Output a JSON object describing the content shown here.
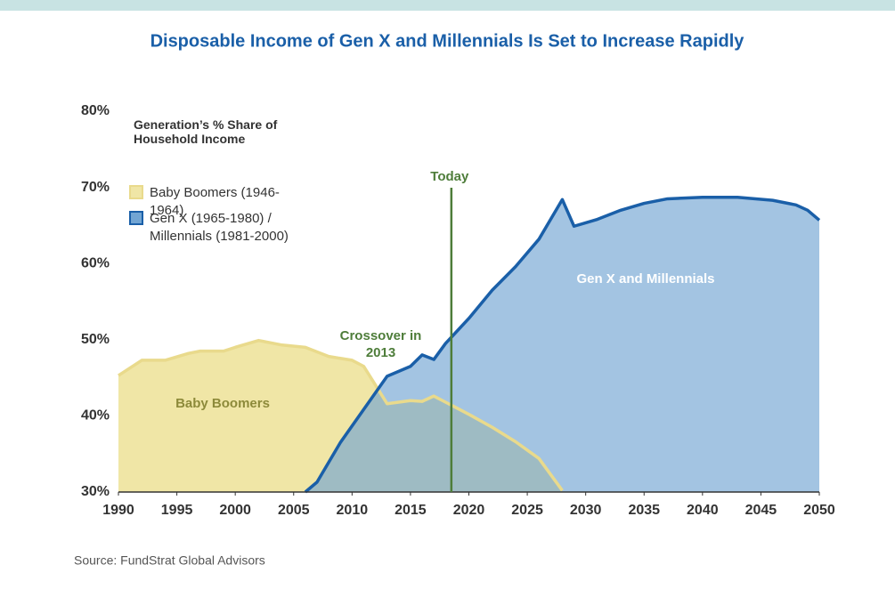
{
  "chart_data": {
    "type": "area",
    "title": "Disposable Income of Gen X and Millennials Is Set to Increase Rapidly",
    "legend_title": "Generation’s % Share of Household Income",
    "source": "Source: FundStrat Global Advisors",
    "xlim": [
      1990,
      2050
    ],
    "xticks": [
      1990,
      1995,
      2000,
      2005,
      2010,
      2015,
      2020,
      2025,
      2030,
      2035,
      2040,
      2045,
      2050
    ],
    "ylim": [
      30,
      80
    ],
    "yticks": [
      {
        "value": 30,
        "label": "30%"
      },
      {
        "value": 40,
        "label": "40%"
      },
      {
        "value": 50,
        "label": "50%"
      },
      {
        "value": 60,
        "label": "60%"
      },
      {
        "value": 70,
        "label": "70%"
      },
      {
        "value": 80,
        "label": "80%"
      }
    ],
    "today": {
      "label": "Today",
      "x": 2018.5,
      "color": "#4e7d3a"
    },
    "annotations": [
      "Baby Boomers",
      "Crossover in 2013",
      "Gen X and Millennials"
    ],
    "series": [
      {
        "name": "Baby Boomers (1946-1964)",
        "color": "#e9da8c",
        "fill": "#f0e6a6",
        "x": [
          1990,
          1992,
          1994,
          1996,
          1997,
          1999,
          2000,
          2002,
          2004,
          2006,
          2008,
          2010,
          2011,
          2013,
          2015,
          2016,
          2017,
          2018,
          2020,
          2022,
          2024,
          2026,
          2028
        ],
        "values": [
          45.3,
          47.3,
          47.3,
          48.2,
          48.5,
          48.5,
          49.0,
          49.9,
          49.3,
          49.0,
          47.8,
          47.3,
          46.5,
          41.6,
          42.0,
          41.9,
          42.6,
          41.8,
          40.2,
          38.5,
          36.6,
          34.4,
          30.2
        ]
      },
      {
        "name": "Gen X (1965-1980) / Millennials (1981-2000)",
        "color": "#1a5fa8",
        "fill": "#72a5d3",
        "x": [
          2006,
          2007,
          2009,
          2013,
          2015,
          2016,
          2017,
          2018,
          2020,
          2022,
          2024,
          2026,
          2028,
          2029,
          2031,
          2033,
          2035,
          2037,
          2040,
          2043,
          2046,
          2048,
          2049,
          2050
        ],
        "values": [
          30.0,
          31.3,
          36.5,
          45.2,
          46.5,
          48.0,
          47.4,
          49.5,
          52.8,
          56.5,
          59.6,
          63.2,
          68.4,
          64.9,
          65.8,
          67.0,
          67.9,
          68.5,
          68.7,
          68.7,
          68.3,
          67.7,
          67.0,
          65.7
        ]
      }
    ]
  }
}
